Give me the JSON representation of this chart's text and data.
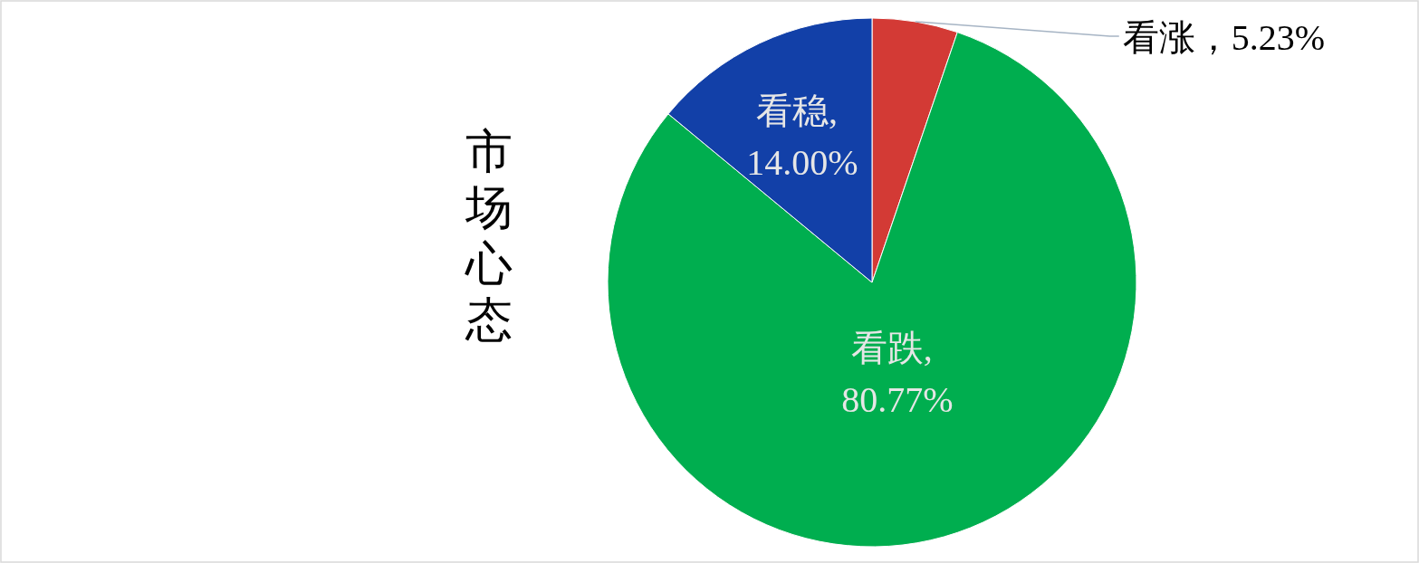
{
  "chart_data": {
    "type": "pie",
    "title": "市场心态",
    "categories": [
      "看涨",
      "看跌",
      "看稳"
    ],
    "values": [
      5.23,
      80.77,
      14.0
    ],
    "value_labels": [
      "，5.23%",
      ", 80.77%",
      ", 14.00%"
    ],
    "colors": [
      "#d33a35",
      "#00ae4f",
      "#1240a8"
    ],
    "legend": false
  }
}
